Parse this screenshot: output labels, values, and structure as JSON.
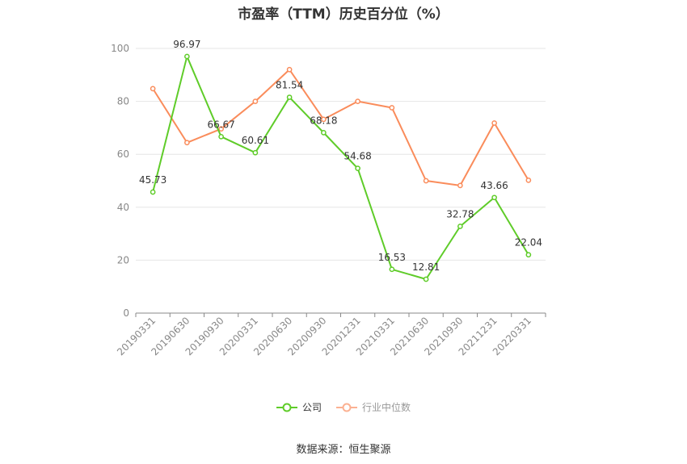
{
  "chart_data": {
    "type": "line",
    "title": "市盈率（TTM）历史百分位（%）",
    "categories": [
      "20190331",
      "20190630",
      "20190930",
      "20200331",
      "20200630",
      "20200930",
      "20201231",
      "20210331",
      "20210630",
      "20210930",
      "20211231",
      "20220331"
    ],
    "series": [
      {
        "name": "公司",
        "color": "#5fcc29",
        "values": [
          45.73,
          96.97,
          66.67,
          60.61,
          81.54,
          68.18,
          54.68,
          16.53,
          12.81,
          32.78,
          43.66,
          22.04
        ],
        "labels": [
          "45.73",
          "96.97",
          "66.67",
          "60.61",
          "81.54",
          "68.18",
          "54.68",
          "16.53",
          "12.81",
          "32.78",
          "43.66",
          "22.04"
        ]
      },
      {
        "name": "行业中位数",
        "color": "#fa8c5b",
        "values": [
          84.8,
          64.4,
          69.6,
          80.0,
          92.0,
          73.2,
          80.0,
          77.6,
          50.0,
          48.2,
          71.8,
          50.2
        ]
      }
    ],
    "yticks": [
      "0",
      "20",
      "40",
      "60",
      "80",
      "100"
    ],
    "ylim": [
      0,
      100
    ],
    "grid": true,
    "legend_position": "bottom"
  },
  "footer": {
    "source": "数据来源：恒生聚源"
  }
}
